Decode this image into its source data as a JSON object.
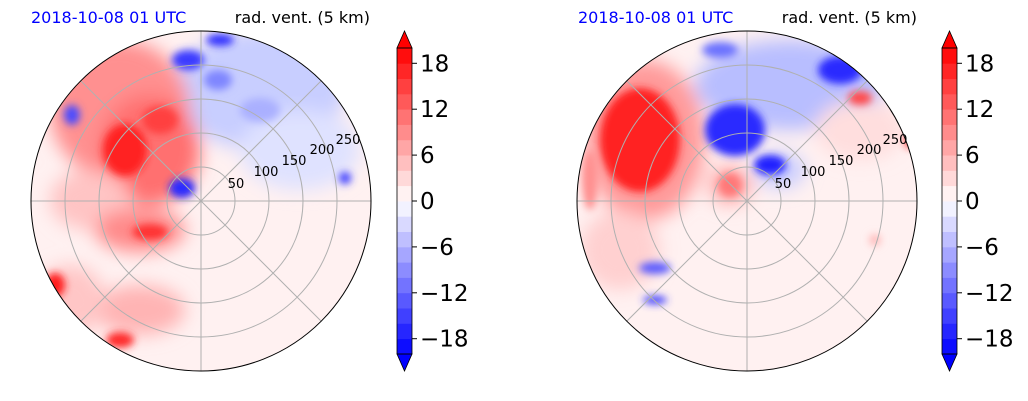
{
  "panels": [
    {
      "time_label": "2018-10-08 01 UTC",
      "field_label": "rad. vent. (5 km)",
      "rings": [
        "50",
        "100",
        "150",
        "200",
        "250"
      ]
    },
    {
      "time_label": "2018-10-08 01 UTC",
      "field_label": "rad. vent. (5 km)",
      "rings": [
        "50",
        "100",
        "150",
        "200",
        "250"
      ]
    }
  ],
  "colorbar": {
    "ticks": [
      "18",
      "12",
      "6",
      "0",
      "−6",
      "−12",
      "−18"
    ],
    "tick_values": [
      18,
      12,
      6,
      0,
      -6,
      -12,
      -18
    ],
    "range": [
      -20,
      20
    ],
    "step": 2,
    "extend": "both"
  },
  "colors": {
    "time_label": "#0000ff",
    "positive": "#ff0000",
    "negative": "#0000ff",
    "neutral": "#ffffff",
    "grid": "#b0b0b0"
  },
  "chart_data": [
    {
      "type": "heatmap",
      "title": "rad. vent. (5 km)",
      "subtitle": "2018-10-08 01 UTC",
      "projection": "polar",
      "radial_ticks": [
        50,
        100,
        150,
        200,
        250
      ],
      "color_range": [
        -20,
        20
      ],
      "grid": true
    },
    {
      "type": "heatmap",
      "title": "rad. vent. (5 km)",
      "subtitle": "2018-10-08 01 UTC",
      "projection": "polar",
      "radial_ticks": [
        50,
        100,
        150,
        200,
        250
      ],
      "color_range": [
        -20,
        20
      ],
      "grid": true
    }
  ]
}
